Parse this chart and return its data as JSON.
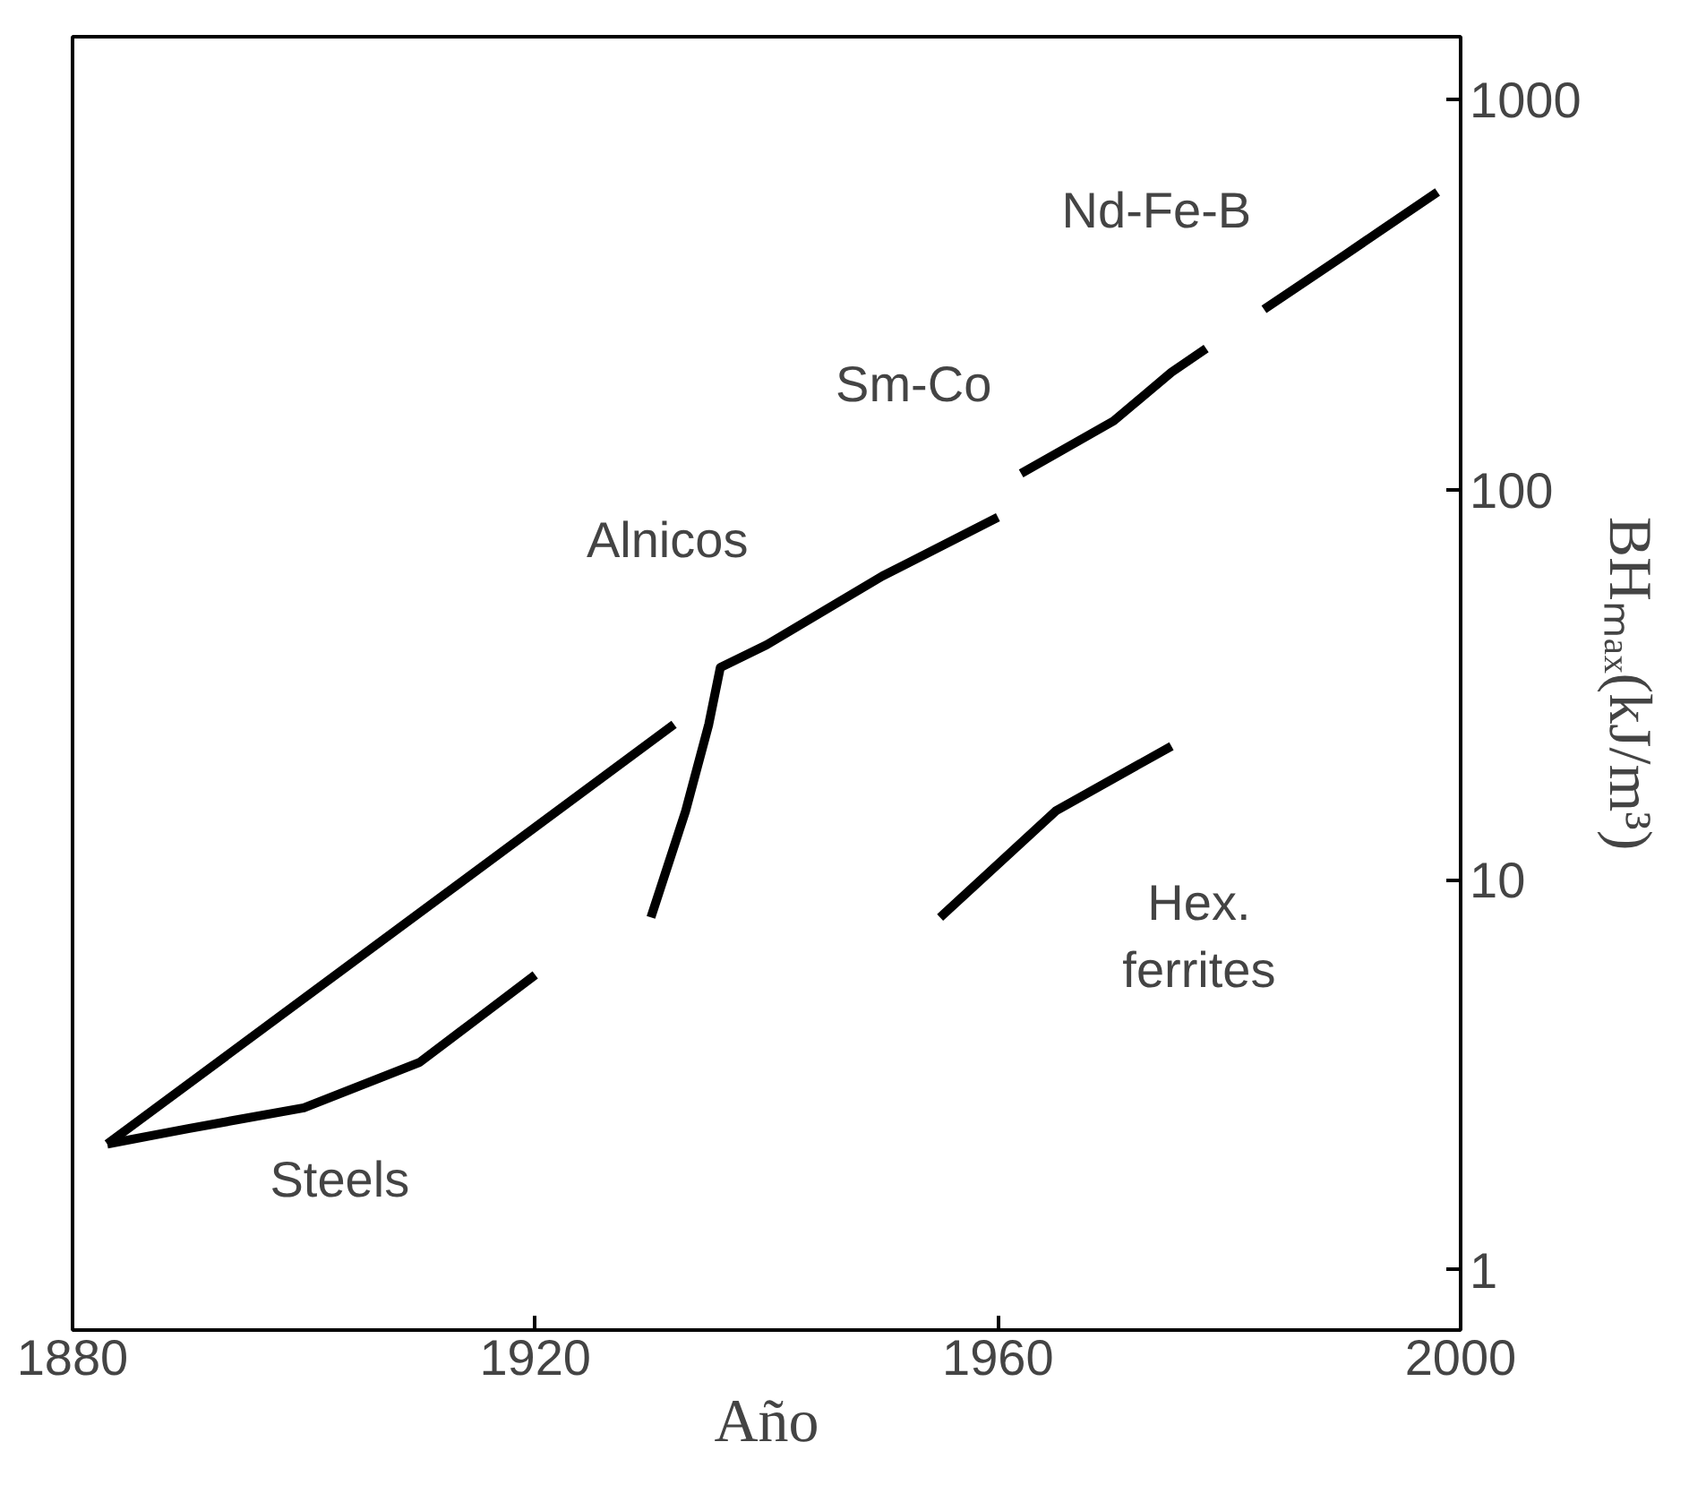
{
  "chart_data": {
    "type": "line",
    "xlabel": "Año",
    "ylabel": "BHₘₐₓ(kJ/m³)",
    "log": "y",
    "grid": false,
    "marker": "none",
    "xlim": [
      1880,
      2000
    ],
    "ylim": [
      0.7,
      1450
    ],
    "xticks": [
      1880,
      1920,
      1960,
      2000
    ],
    "yticks": [
      1,
      10,
      100,
      1000
    ],
    "series": [
      {
        "name": "Steels",
        "color": "#000000",
        "x": [
          1883,
          1890,
          1900,
          1910,
          1915,
          1920
        ],
        "values": [
          2.1,
          2.3,
          2.6,
          3.4,
          4.4,
          5.7
        ]
      },
      {
        "color": "#000000",
        "x": [
          1883,
          1932
        ],
        "values": [
          2.1,
          25
        ]
      },
      {
        "name": "Alnicos",
        "color": "#000000",
        "x": [
          1930,
          1933,
          1935,
          1936,
          1940,
          1950,
          1960
        ],
        "values": [
          8,
          15,
          25,
          35,
          40,
          60,
          85
        ]
      },
      {
        "name": "Sm-Co",
        "color": "#000000",
        "x": [
          1962,
          1970,
          1975,
          1978
        ],
        "values": [
          110,
          150,
          200,
          230
        ]
      },
      {
        "name": "Nd-Fe-B",
        "color": "#000000",
        "x": [
          1983,
          1990,
          1998
        ],
        "values": [
          290,
          400,
          580
        ]
      },
      {
        "name": "Hex. ferrites",
        "color": "#000000",
        "x": [
          1955,
          1965,
          1975
        ],
        "values": [
          8,
          15,
          22
        ]
      }
    ]
  }
}
